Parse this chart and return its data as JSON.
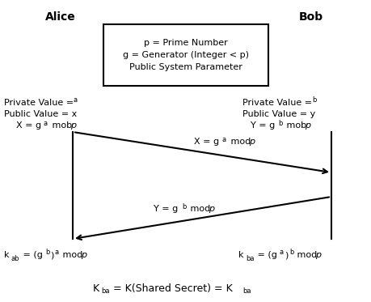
{
  "title_alice": "Alice",
  "title_bob": "Bob",
  "box_lines": [
    "p = Prime Number",
    "g = Generator (Integer < p)",
    "Public System Parameter"
  ],
  "bg_color": "#ffffff",
  "text_color": "#000000",
  "line_color": "#000000"
}
